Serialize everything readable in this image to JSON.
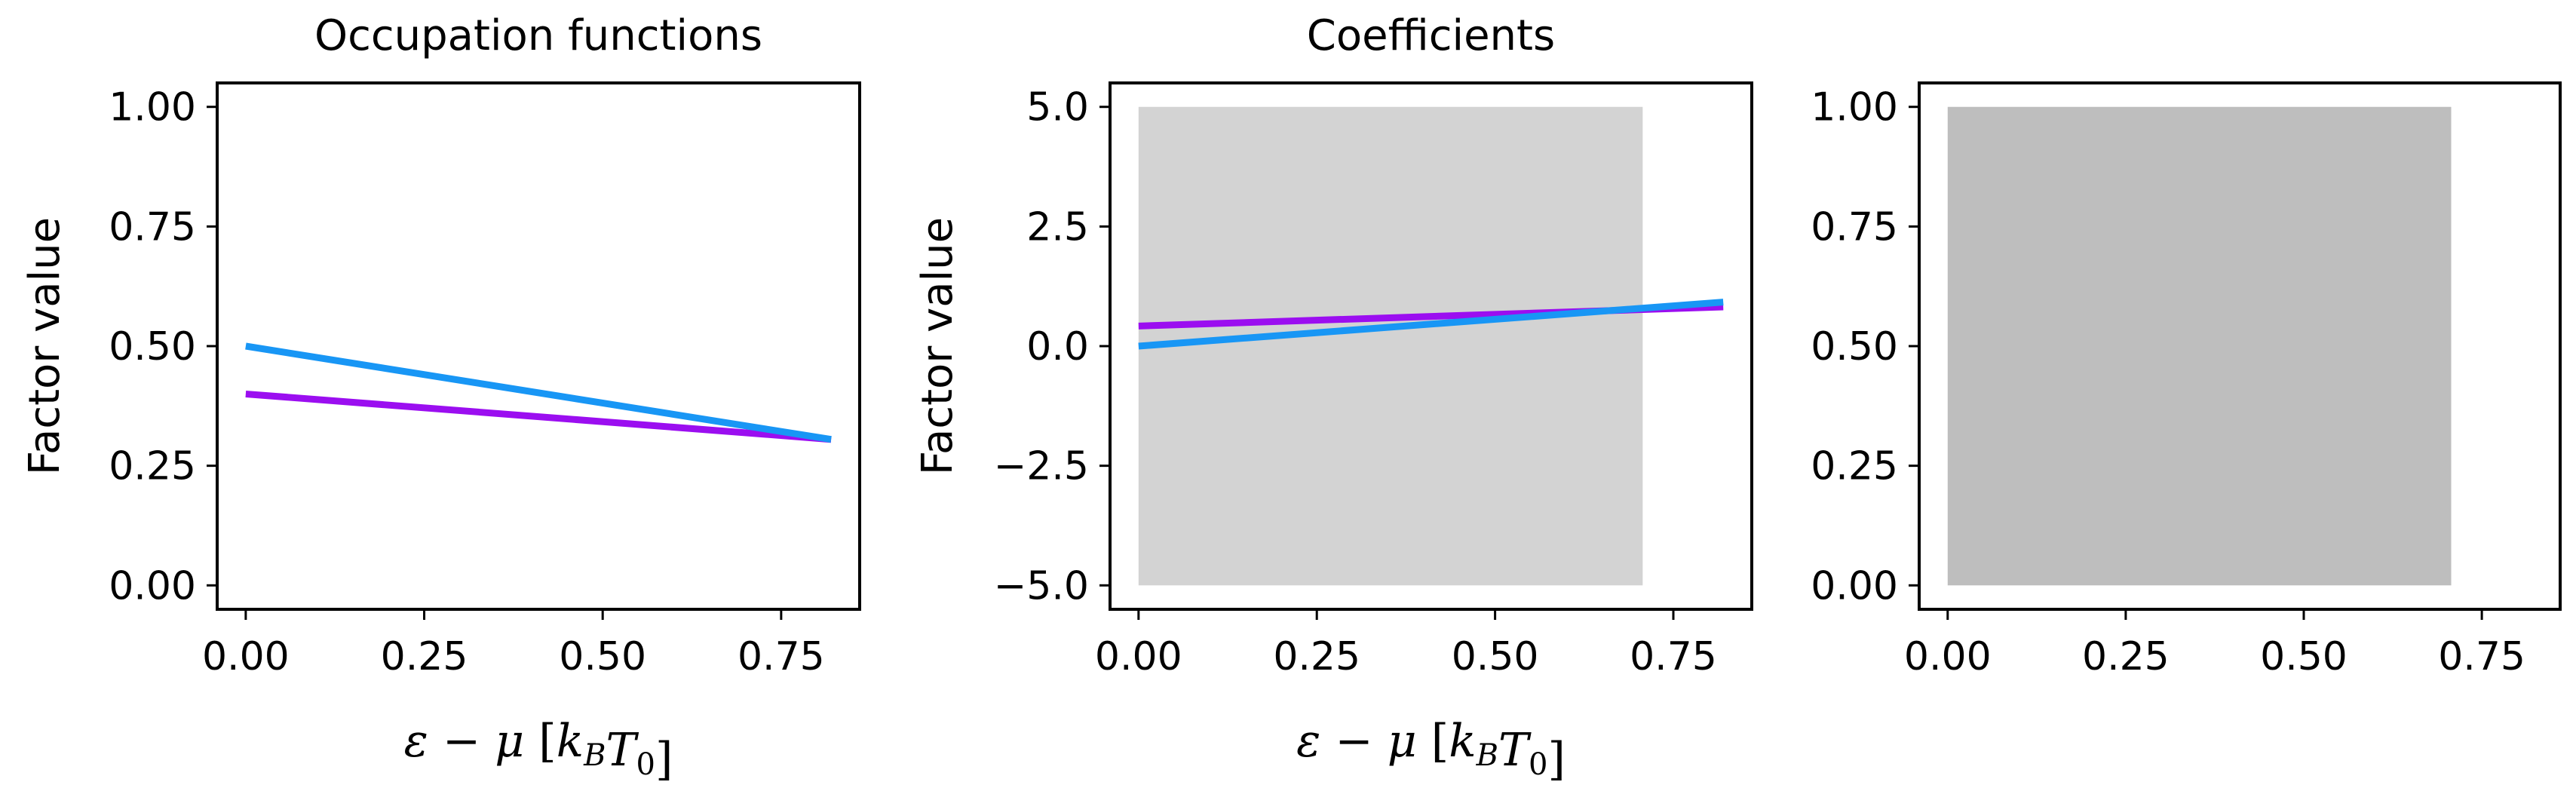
{
  "chart_data": [
    {
      "type": "line",
      "title": "Occupation functions",
      "xlabel": "ε − μ [k_B T_0]",
      "ylabel": "Factor value",
      "xlim": [
        -0.04,
        0.86
      ],
      "ylim": [
        -0.05,
        1.05
      ],
      "xticks": [
        0.0,
        0.25,
        0.5,
        0.75
      ],
      "xtick_labels": [
        "0.00",
        "0.25",
        "0.50",
        "0.75"
      ],
      "yticks": [
        0.0,
        0.25,
        0.5,
        0.75,
        1.0
      ],
      "ytick_labels": [
        "0.00",
        "0.25",
        "0.50",
        "0.75",
        "1.00"
      ],
      "shaded": null,
      "series": [
        {
          "color": "#9B0EF0",
          "x": [
            0.0,
            0.82
          ],
          "y": [
            0.4,
            0.305
          ]
        },
        {
          "color": "#1896F5",
          "x": [
            0.0,
            0.82
          ],
          "y": [
            0.5,
            0.305
          ]
        }
      ]
    },
    {
      "type": "line",
      "title": "Coefficients",
      "xlabel": "ε − μ [k_B T_0]",
      "ylabel": "Factor value",
      "xlim": [
        -0.04,
        0.86
      ],
      "ylim": [
        -5.5,
        5.5
      ],
      "xticks": [
        0.0,
        0.25,
        0.5,
        0.75
      ],
      "xtick_labels": [
        "0.00",
        "0.25",
        "0.50",
        "0.75"
      ],
      "yticks": [
        -5.0,
        -2.5,
        0.0,
        2.5,
        5.0
      ],
      "ytick_labels": [
        "−5.0",
        "−2.5",
        "0.0",
        "2.5",
        "5.0"
      ],
      "shaded": {
        "x": [
          0.0,
          0.707
        ],
        "y": [
          -5.0,
          5.0
        ],
        "color": "#D3D3D3"
      },
      "series": [
        {
          "color": "#9B0EF0",
          "x": [
            0.0,
            0.82
          ],
          "y": [
            0.42,
            0.82
          ]
        },
        {
          "color": "#1896F5",
          "x": [
            0.0,
            0.82
          ],
          "y": [
            0.0,
            0.92
          ]
        }
      ]
    },
    {
      "type": "area",
      "title": "",
      "xlabel": "",
      "ylabel": "",
      "xlim": [
        -0.04,
        0.86
      ],
      "ylim": [
        -0.05,
        1.05
      ],
      "xticks": [
        0.0,
        0.25,
        0.5,
        0.75
      ],
      "xtick_labels": [
        "0.00",
        "0.25",
        "0.50",
        "0.75"
      ],
      "yticks": [
        0.0,
        0.25,
        0.5,
        0.75,
        1.0
      ],
      "ytick_labels": [
        "0.00",
        "0.25",
        "0.50",
        "0.75",
        "1.00"
      ],
      "shaded": {
        "x": [
          0.0,
          0.707
        ],
        "y": [
          0.0,
          1.0
        ],
        "color": "#BEBEBE"
      },
      "series": []
    }
  ]
}
